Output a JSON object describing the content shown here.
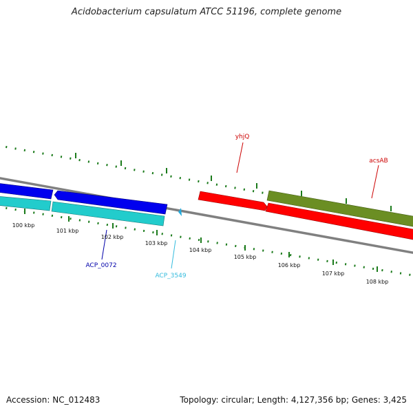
{
  "title": "Acidobacterium capsulatum ATCC 51196, complete genome",
  "footer": {
    "accession": "Accession: NC_012483",
    "summary": "Topology: circular; Length: 4,127,356 bp; Genes: 3,425"
  },
  "map": {
    "tick_labels": [
      "100 kbp",
      "101 kbp",
      "102 kbp",
      "103 kbp",
      "104 kbp",
      "105 kbp",
      "106 kbp",
      "107 kbp",
      "108 kbp"
    ],
    "genes": [
      {
        "label": "yhjQ",
        "color": "#cc0000"
      },
      {
        "label": "acsAB",
        "color": "#cc0000"
      },
      {
        "label": "ACP_0072",
        "color": "#0000aa"
      },
      {
        "label": "ACP_3549",
        "color": "#33bbdd"
      }
    ],
    "colors": {
      "backbone": "#808080",
      "forward_cds": "#ff0000",
      "reverse_cds": "#0000ff",
      "rna_cds": "#22cccc",
      "other_cds": "#6b8e23",
      "tick": "#1a7a1a"
    }
  }
}
